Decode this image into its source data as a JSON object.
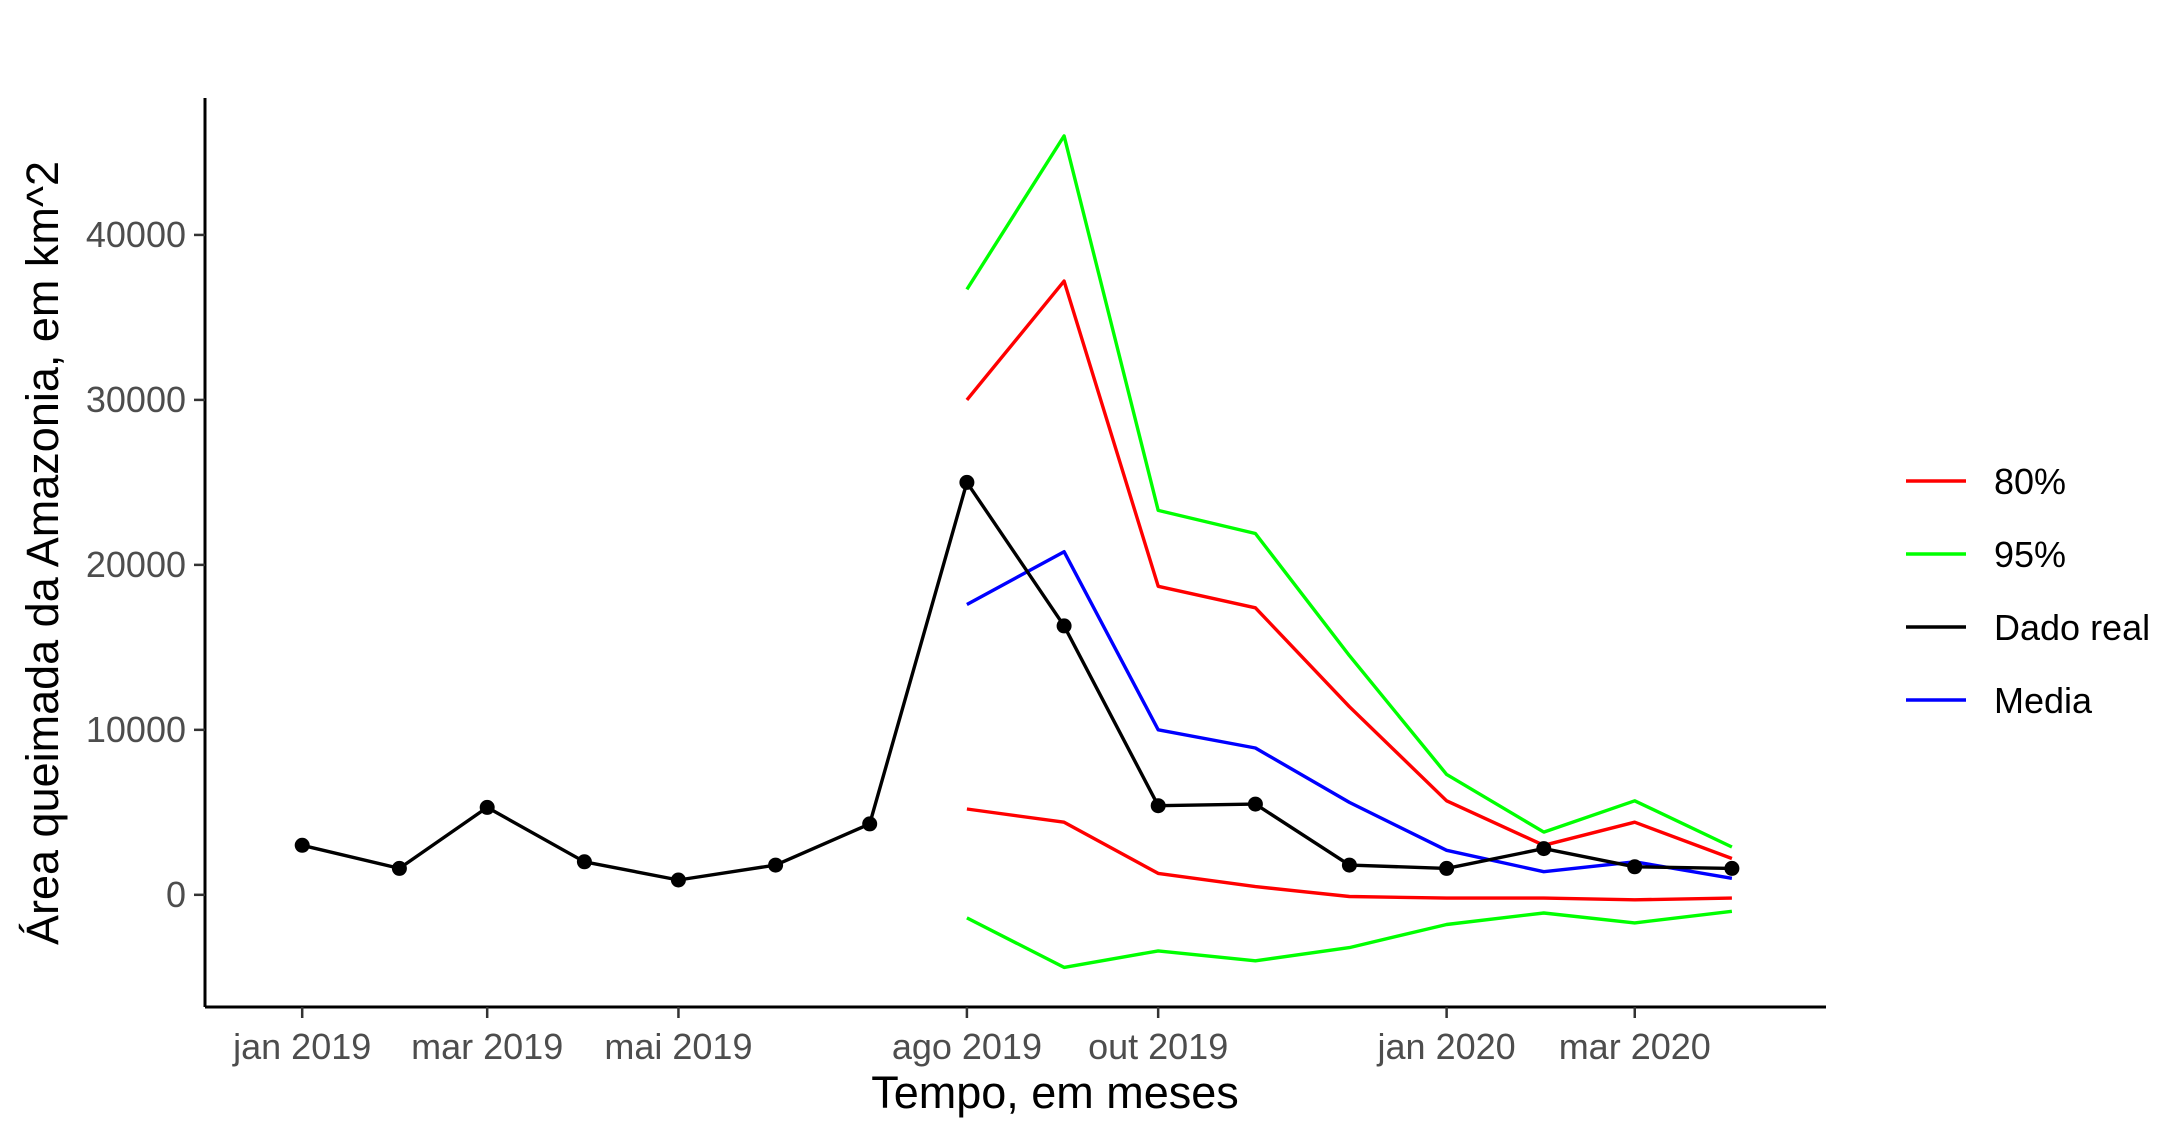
{
  "chart_data": {
    "type": "line",
    "xlabel": "Tempo, em meses",
    "ylabel": "Área queimada da Amazonia, em km^2",
    "x_axis": {
      "type": "date",
      "range": [
        "2018-12-01",
        "2020-05-01"
      ],
      "ticks": [
        {
          "date": "2019-01-01",
          "label": "jan 2019"
        },
        {
          "date": "2019-03-01",
          "label": "mar 2019"
        },
        {
          "date": "2019-05-01",
          "label": "mai 2019"
        },
        {
          "date": "2019-08-01",
          "label": "ago 2019"
        },
        {
          "date": "2019-10-01",
          "label": "out 2019"
        },
        {
          "date": "2020-01-01",
          "label": "jan 2020"
        },
        {
          "date": "2020-03-01",
          "label": "mar 2020"
        }
      ]
    },
    "y_axis": {
      "range": [
        -6800,
        48300
      ],
      "ticks": [
        0,
        10000,
        20000,
        30000,
        40000
      ]
    },
    "grid": false,
    "legend_position": "right",
    "series": [
      {
        "name": "Dado real",
        "color": "#000000",
        "points": true,
        "x": [
          "2019-01-01",
          "2019-02-01",
          "2019-03-01",
          "2019-04-01",
          "2019-05-01",
          "2019-06-01",
          "2019-07-01",
          "2019-08-01",
          "2019-09-01",
          "2019-10-01",
          "2019-11-01",
          "2019-12-01",
          "2020-01-01",
          "2020-02-01",
          "2020-03-01",
          "2020-04-01"
        ],
        "y": [
          3000,
          1600,
          5300,
          2000,
          900,
          1800,
          4300,
          25000,
          16300,
          5400,
          5500,
          1800,
          1600,
          2800,
          1700,
          1600
        ]
      },
      {
        "name": "Media",
        "color": "#0000ff",
        "points": false,
        "x": [
          "2019-08-01",
          "2019-09-01",
          "2019-10-01",
          "2019-11-01",
          "2019-12-01",
          "2020-01-01",
          "2020-02-01",
          "2020-03-01",
          "2020-04-01"
        ],
        "y": [
          17600,
          20800,
          10000,
          8900,
          5600,
          2700,
          1400,
          2000,
          1000
        ]
      },
      {
        "name": "80%",
        "color": "#ff0000",
        "points": false,
        "x": [
          "2019-08-01",
          "2019-09-01",
          "2019-10-01",
          "2019-11-01",
          "2019-12-01",
          "2020-01-01",
          "2020-02-01",
          "2020-03-01",
          "2020-04-01"
        ],
        "y": [
          30000,
          37200,
          18700,
          17400,
          11400,
          5700,
          3000,
          4400,
          2200
        ],
        "y_lower": [
          5200,
          4400,
          1300,
          500,
          -100,
          -200,
          -200,
          -300,
          -200
        ]
      },
      {
        "name": "95%",
        "color": "#00ff00",
        "points": false,
        "x": [
          "2019-08-01",
          "2019-09-01",
          "2019-10-01",
          "2019-11-01",
          "2019-12-01",
          "2020-01-01",
          "2020-02-01",
          "2020-03-01",
          "2020-04-01"
        ],
        "y": [
          36700,
          46000,
          23300,
          21900,
          14500,
          7300,
          3800,
          5700,
          2900
        ],
        "y_lower": [
          -1400,
          -4400,
          -3400,
          -4000,
          -3200,
          -1800,
          -1100,
          -1700,
          -1000
        ]
      }
    ],
    "legend": [
      {
        "label": "80%",
        "color": "#ff0000"
      },
      {
        "label": "95%",
        "color": "#00ff00"
      },
      {
        "label": "Dado real",
        "color": "#000000"
      },
      {
        "label": "Media",
        "color": "#0000ff"
      }
    ]
  }
}
